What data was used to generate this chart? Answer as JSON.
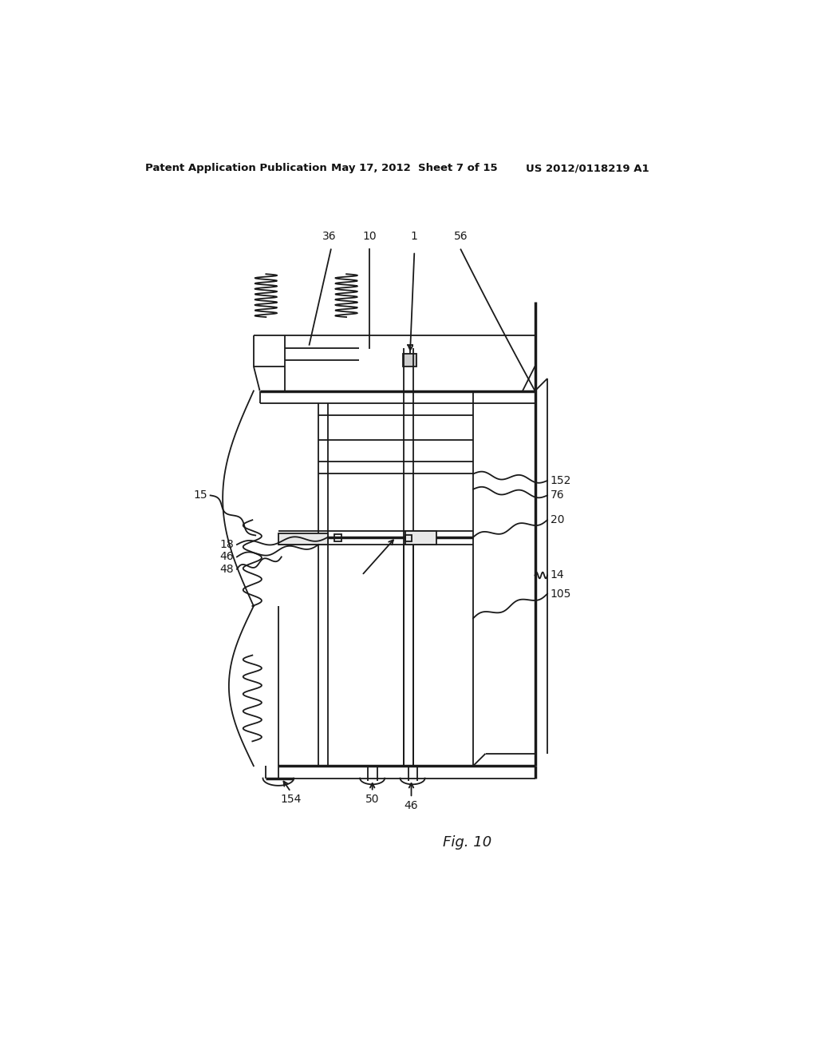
{
  "bg_color": "#ffffff",
  "header_left": "Patent Application Publication",
  "header_mid": "May 17, 2012  Sheet 7 of 15",
  "header_right": "US 2012/0118219 A1",
  "fig_label": "Fig. 10",
  "line_color": "#1a1a1a",
  "lw": 1.3,
  "tlw": 2.5
}
